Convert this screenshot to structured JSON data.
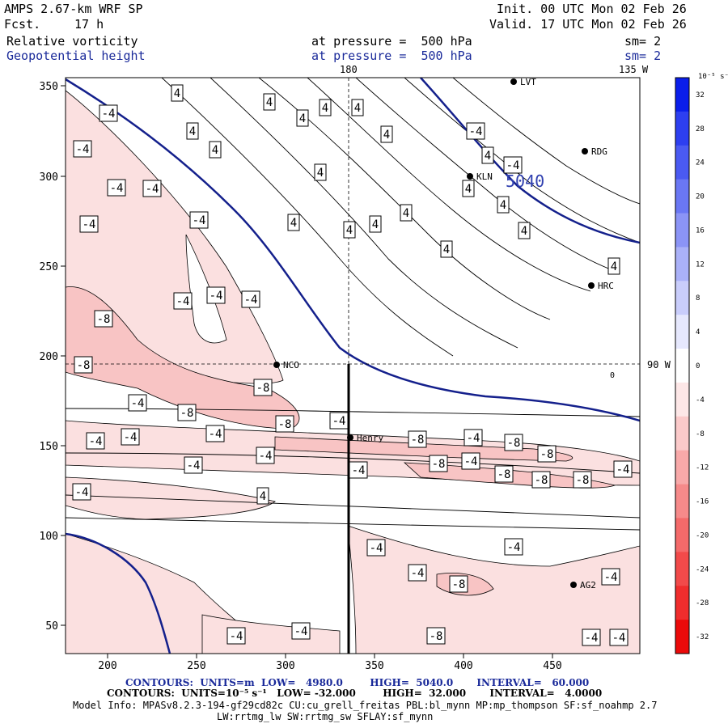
{
  "header": {
    "model": "AMPS 2.67-km WRF SP",
    "fcst_label": "Fcst.",
    "fcst_value": "17 h",
    "init": "Init. 00 UTC Mon 02 Feb 26",
    "valid": "Valid. 17 UTC Mon 02 Feb 26",
    "field1": {
      "name": "Relative vorticity",
      "pressure": "at pressure =  500 hPa",
      "sm": "sm= 2"
    },
    "field2": {
      "name": "Geopotential height",
      "pressure": "at pressure =  500 hPa",
      "sm": "sm= 2"
    }
  },
  "map": {
    "x_ticks": [
      "200",
      "250",
      "300",
      "350",
      "400",
      "450"
    ],
    "y_ticks": [
      "350",
      "300",
      "250",
      "200",
      "150",
      "100",
      "50"
    ],
    "lon_labels": {
      "top_center": "180",
      "top_right": "135 W",
      "right_mid": "90 W"
    },
    "stations": [
      "LVT",
      "RDG",
      "KLN",
      "HRC",
      "NCO",
      "Henry",
      "AG2"
    ],
    "height_contour_label": "5040",
    "vorticity_labels": {
      "positive": "4",
      "negative": "-4",
      "negative2": "-8"
    },
    "zero_label": "0"
  },
  "colorbar": {
    "title": "10⁻⁵ s⁻¹",
    "labels": [
      "32",
      "28",
      "24",
      "20",
      "16",
      "12",
      "8",
      "4",
      "0",
      "-4",
      "-8",
      "-12",
      "-16",
      "-20",
      "-24",
      "-28",
      "-32"
    ],
    "colors": [
      "#0a1eeb",
      "#2d3ff0",
      "#4a5af2",
      "#6a77f4",
      "#8b94f6",
      "#aab1f8",
      "#c9cdfb",
      "#e6e8fd",
      "#ffffff",
      "#fde7e7",
      "#fbcaca",
      "#f8a9a9",
      "#f68a8a",
      "#f46a6a",
      "#f24a4a",
      "#f02d2d",
      "#eb0a0a"
    ]
  },
  "footer": {
    "contours1": "CONTOURS:  UNITS=m  LOW=   4980.0        HIGH=  5040.0       INTERVAL=   60.000",
    "contours2": "CONTOURS:  UNITS=10⁻⁵ s⁻¹   LOW= -32.000        HIGH=  32.000       INTERVAL=   4.0000",
    "model_info": "Model Info: MPASv8.2.3-194-gf29cd82c CU:cu_grell_freitas PBL:bl_mynn MP:mp_thompson SF:sf_noahmp 2.7",
    "model_info2": "LW:rrtmg_lw SW:rrtmg_sw SFLAY:sf_mynn"
  }
}
